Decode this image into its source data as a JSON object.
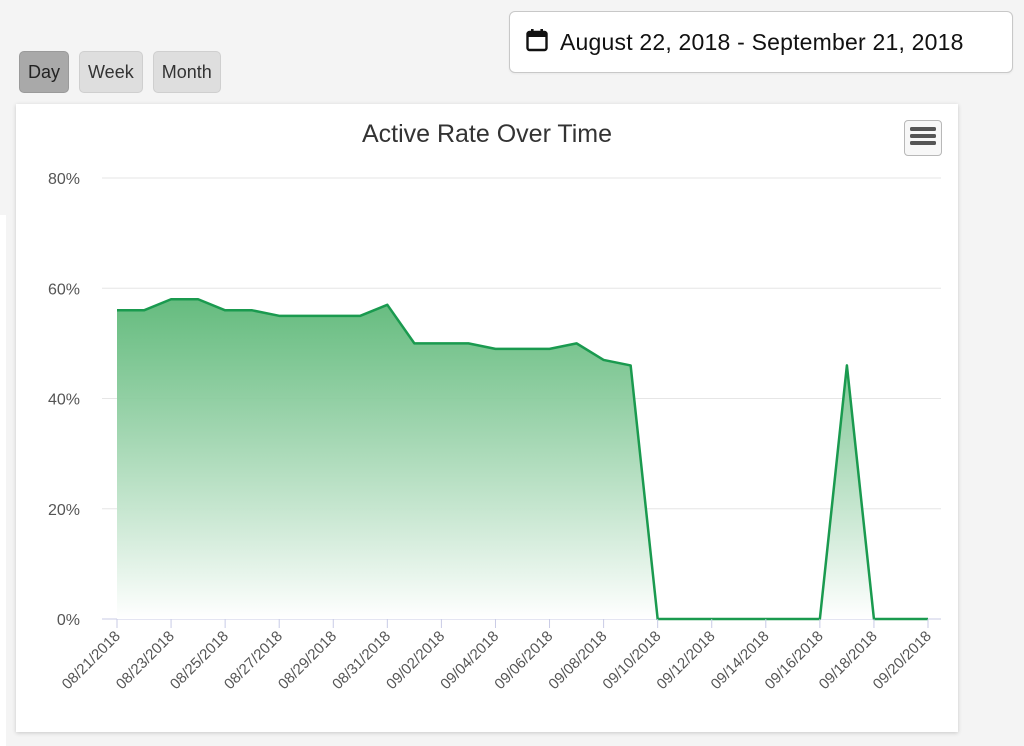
{
  "range_buttons": [
    {
      "label": "Day",
      "active": true
    },
    {
      "label": "Week",
      "active": false
    },
    {
      "label": "Month",
      "active": false
    }
  ],
  "date_picker": {
    "icon": "calendar-icon",
    "label": "August 22, 2018 - September 21, 2018"
  },
  "menu": {
    "icon": "hamburger-menu-icon"
  },
  "colors": {
    "line": "#1a9a4f",
    "fill_top": "#4fb26c",
    "fill_bottom": "#ffffff",
    "grid": "#e6e6e6"
  },
  "chart_data": {
    "type": "area",
    "title": "Active Rate Over Time",
    "xlabel": "",
    "ylabel": "",
    "ylim": [
      0,
      80
    ],
    "yticks": [
      0,
      20,
      40,
      60,
      80
    ],
    "ytick_labels": [
      "0%",
      "20%",
      "40%",
      "60%",
      "80%"
    ],
    "x": [
      "08/21/2018",
      "08/22/2018",
      "08/23/2018",
      "08/24/2018",
      "08/25/2018",
      "08/26/2018",
      "08/27/2018",
      "08/28/2018",
      "08/29/2018",
      "08/30/2018",
      "08/31/2018",
      "09/01/2018",
      "09/02/2018",
      "09/03/2018",
      "09/04/2018",
      "09/05/2018",
      "09/06/2018",
      "09/07/2018",
      "09/08/2018",
      "09/09/2018",
      "09/10/2018",
      "09/11/2018",
      "09/12/2018",
      "09/13/2018",
      "09/14/2018",
      "09/15/2018",
      "09/16/2018",
      "09/17/2018",
      "09/18/2018",
      "09/19/2018",
      "09/20/2018"
    ],
    "xtick_labels": [
      "08/21/2018",
      "08/23/2018",
      "08/25/2018",
      "08/27/2018",
      "08/29/2018",
      "08/31/2018",
      "09/02/2018",
      "09/04/2018",
      "09/06/2018",
      "09/08/2018",
      "09/10/2018",
      "09/12/2018",
      "09/14/2018",
      "09/16/2018",
      "09/18/2018",
      "09/20/2018"
    ],
    "series": [
      {
        "name": "Active Rate",
        "values": [
          56,
          56,
          58,
          58,
          56,
          56,
          55,
          55,
          55,
          55,
          57,
          50,
          50,
          50,
          49,
          49,
          49,
          50,
          47,
          46,
          0,
          0,
          0,
          0,
          0,
          0,
          0,
          46,
          0,
          0,
          0
        ]
      }
    ]
  }
}
